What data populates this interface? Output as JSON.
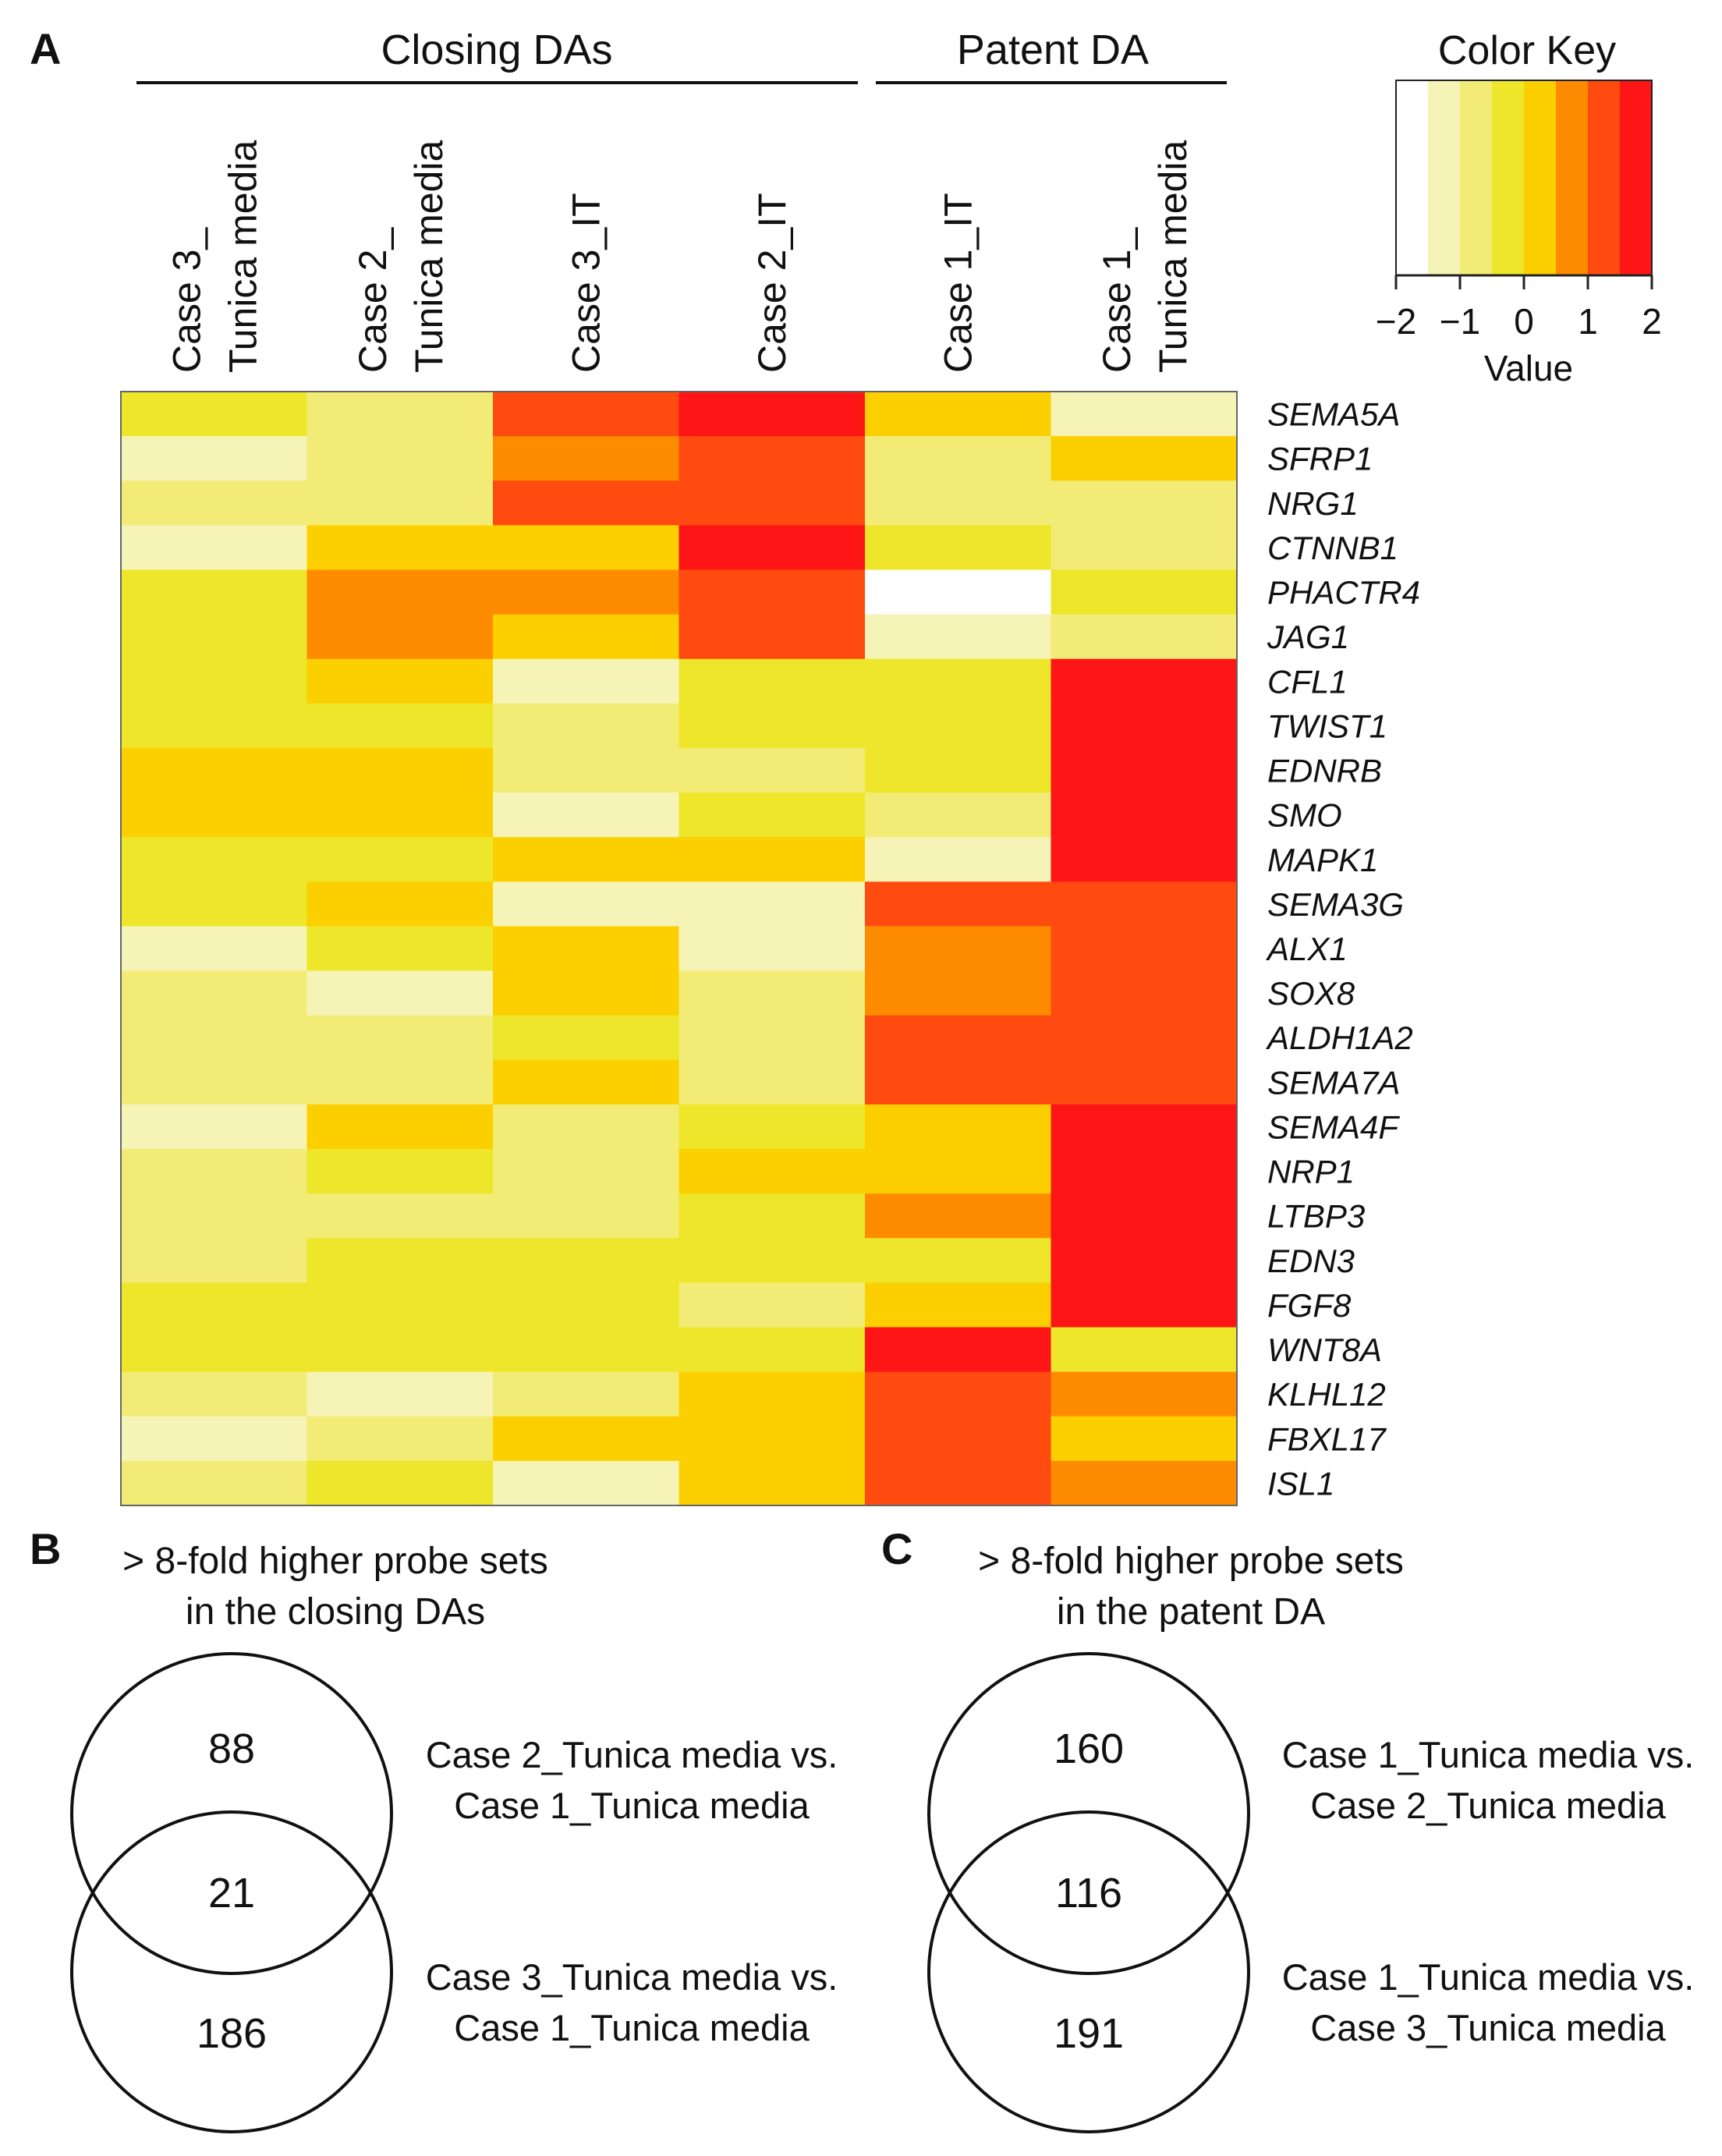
{
  "panel_a": {
    "label": "A",
    "groups": [
      {
        "label": "Closing DAs"
      },
      {
        "label": "Patent DA"
      }
    ]
  },
  "panel_b": {
    "label": "B",
    "title_line1": "> 8-fold higher probe sets",
    "title_line2": "in the closing DAs"
  },
  "panel_c": {
    "label": "C",
    "title_line1": "> 8-fold higher probe sets",
    "title_line2": "in the patent DA"
  },
  "chart_data": [
    {
      "type": "heatmap",
      "columns": [
        [
          "Case 3_",
          "Tunica media"
        ],
        [
          "Case 2_",
          "Tunica media"
        ],
        [
          "Case 3_IT"
        ],
        [
          "Case 2_IT"
        ],
        [
          "Case 1_IT"
        ],
        [
          "Case 1_",
          "Tunica media"
        ]
      ],
      "rows": [
        "SEMA5A",
        "SFRP1",
        "NRG1",
        "CTNNB1",
        "PHACTR4",
        "JAG1",
        "CFL1",
        "TWIST1",
        "EDNRB",
        "SMO",
        "MAPK1",
        "SEMA3G",
        "ALX1",
        "SOX8",
        "ALDH1A2",
        "SEMA7A",
        "SEMA4F",
        "NRP1",
        "LTBP3",
        "EDN3",
        "FGF8",
        "WNT8A",
        "KLHL12",
        "FBXL17",
        "ISL1"
      ],
      "values": [
        [
          -0.25,
          -0.75,
          1.25,
          1.75,
          0.25,
          -1.25
        ],
        [
          -1.25,
          -0.75,
          0.75,
          1.25,
          -0.75,
          0.25
        ],
        [
          -0.75,
          -0.75,
          1.25,
          1.25,
          -0.75,
          -0.75
        ],
        [
          -1.25,
          0.25,
          0.25,
          1.75,
          -0.25,
          -0.75
        ],
        [
          -0.25,
          0.75,
          0.75,
          1.25,
          -2.0,
          -0.25
        ],
        [
          -0.25,
          0.75,
          0.25,
          1.25,
          -1.25,
          -0.75
        ],
        [
          -0.25,
          0.25,
          -1.25,
          -0.25,
          -0.25,
          1.75
        ],
        [
          -0.25,
          -0.25,
          -0.75,
          -0.25,
          -0.25,
          1.75
        ],
        [
          0.25,
          0.25,
          -0.75,
          -0.75,
          -0.25,
          1.75
        ],
        [
          0.25,
          0.25,
          -1.25,
          -0.25,
          -0.75,
          1.75
        ],
        [
          -0.25,
          -0.25,
          0.25,
          0.25,
          -1.25,
          1.75
        ],
        [
          -0.25,
          0.25,
          -1.25,
          -1.25,
          1.25,
          1.25
        ],
        [
          -1.25,
          -0.25,
          0.25,
          -1.25,
          0.75,
          1.25
        ],
        [
          -0.75,
          -1.25,
          0.25,
          -0.75,
          0.75,
          1.25
        ],
        [
          -0.75,
          -0.75,
          -0.25,
          -0.75,
          1.25,
          1.25
        ],
        [
          -0.75,
          -0.75,
          0.25,
          -0.75,
          1.25,
          1.25
        ],
        [
          -1.25,
          0.25,
          -0.75,
          -0.25,
          0.25,
          1.75
        ],
        [
          -0.75,
          -0.25,
          -0.75,
          0.25,
          0.25,
          1.75
        ],
        [
          -0.75,
          -0.75,
          -0.75,
          -0.25,
          0.75,
          1.75
        ],
        [
          -0.75,
          -0.25,
          -0.25,
          -0.25,
          -0.25,
          1.75
        ],
        [
          -0.25,
          -0.25,
          -0.25,
          -0.75,
          0.25,
          1.75
        ],
        [
          -0.25,
          -0.25,
          -0.25,
          -0.25,
          1.75,
          -0.25
        ],
        [
          -0.75,
          -1.25,
          -0.75,
          0.25,
          1.25,
          0.75
        ],
        [
          -1.25,
          -0.75,
          0.25,
          0.25,
          1.25,
          0.25
        ],
        [
          -0.75,
          -0.25,
          -1.25,
          0.25,
          1.25,
          0.75
        ]
      ],
      "color_key": {
        "title": "Color Key",
        "xlabel": "Value",
        "range": [
          -2,
          2
        ],
        "ticks": [
          -2,
          -1,
          0,
          1,
          2
        ],
        "tick_labels": [
          "−2",
          "−1",
          "0",
          "1",
          "2"
        ],
        "bins": [
          -2,
          -1.5,
          -1,
          -0.5,
          0,
          0.5,
          1,
          1.5,
          2
        ],
        "colors": [
          "#ffffff",
          "#f6f3b7",
          "#f2ec76",
          "#ede62a",
          "#fcd000",
          "#ff8c00",
          "#ff4a10",
          "#fe1515"
        ]
      }
    },
    {
      "type": "venn",
      "top_only": "88",
      "overlap": "21",
      "bottom_only": "186",
      "top_label": [
        "Case 2_Tunica media vs.",
        "Case 1_Tunica media"
      ],
      "bottom_label": [
        "Case 3_Tunica media vs.",
        "Case 1_Tunica media"
      ]
    },
    {
      "type": "venn",
      "top_only": "160",
      "overlap": "116",
      "bottom_only": "191",
      "top_label": [
        "Case 1_Tunica media vs.",
        "Case 2_Tunica media"
      ],
      "bottom_label": [
        "Case 1_Tunica media vs.",
        "Case 3_Tunica media"
      ]
    }
  ]
}
